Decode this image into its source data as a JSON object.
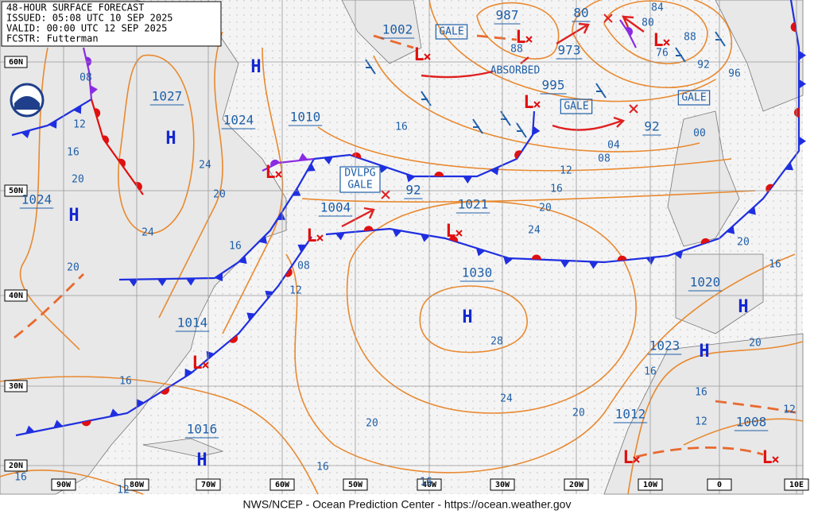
{
  "header": {
    "lines": [
      "48-HOUR SURFACE FORECAST",
      "ISSUED: 05:08 UTC 10 SEP 2025",
      "VALID: 00:00 UTC 12 SEP 2025",
      "FCSTR: Futterman"
    ]
  },
  "footer": "NWS/NCEP - Ocean Prediction Center - https://ocean.weather.gov",
  "lat_labels": [
    "60N",
    "50N",
    "40N",
    "30N",
    "20N"
  ],
  "lon_labels": [
    "90W",
    "80W",
    "70W",
    "60W",
    "50W",
    "40W",
    "30W",
    "20W",
    "10W",
    "0",
    "10E"
  ],
  "highs": [
    "H",
    "H",
    "H",
    "H",
    "H",
    "H",
    "H"
  ],
  "lows": [
    "L",
    "L",
    "L",
    "L",
    "L",
    "L",
    "L",
    "L",
    "L",
    "L"
  ],
  "pressures": [
    "1002",
    "987",
    "80",
    "973",
    "995",
    "1027",
    "1024",
    "1010",
    "1024",
    "1004",
    "92",
    "1021",
    "1030",
    "92",
    "1020",
    "1014",
    "1023",
    "1012",
    "1008",
    "1016"
  ],
  "boxes": [
    "GALE",
    "GALE",
    "GALE",
    "ABSORBED"
  ],
  "dvlpg_gale": [
    "DVLPG",
    "GALE"
  ],
  "isobar_labels": [
    "08",
    "12",
    "16",
    "20",
    "24",
    "20",
    "24",
    "20",
    "16",
    "08",
    "12",
    "16",
    "20",
    "24",
    "28",
    "16",
    "12",
    "16",
    "20",
    "24",
    "04",
    "08",
    "00",
    "92",
    "96",
    "84",
    "88",
    "76",
    "80",
    "88",
    "20",
    "16",
    "20",
    "16",
    "16",
    "12",
    "12",
    "20",
    "16",
    "16",
    "16",
    "12"
  ]
}
